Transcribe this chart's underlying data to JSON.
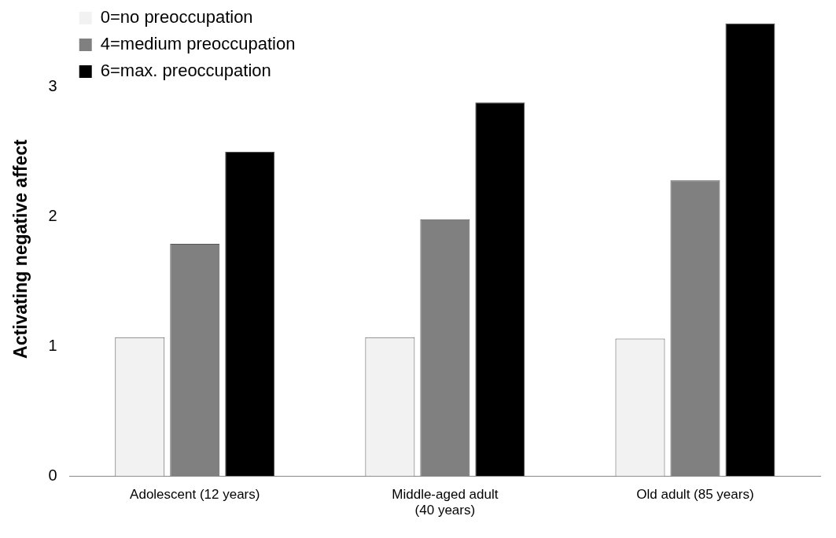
{
  "chart_data": {
    "type": "bar",
    "ylabel": "Activating negative affect",
    "categories": [
      "Adolescent (12 years)",
      "Middle-aged adult (40 years)",
      "Old adult (85 years)"
    ],
    "series": [
      {
        "name": "0=no preoccupation",
        "color": "#f2f2f2",
        "values": [
          1.07,
          1.07,
          1.06
        ]
      },
      {
        "name": "4=medium preoccupation",
        "color": "#808080",
        "values": [
          1.79,
          1.98,
          2.28
        ]
      },
      {
        "name": "6=max. preoccupation",
        "color": "#000000",
        "values": [
          2.5,
          2.88,
          3.49
        ]
      }
    ],
    "ylim": [
      0,
      3.5
    ],
    "yticks": [
      0,
      1,
      2,
      3
    ],
    "grid": false,
    "legend": "top left"
  }
}
